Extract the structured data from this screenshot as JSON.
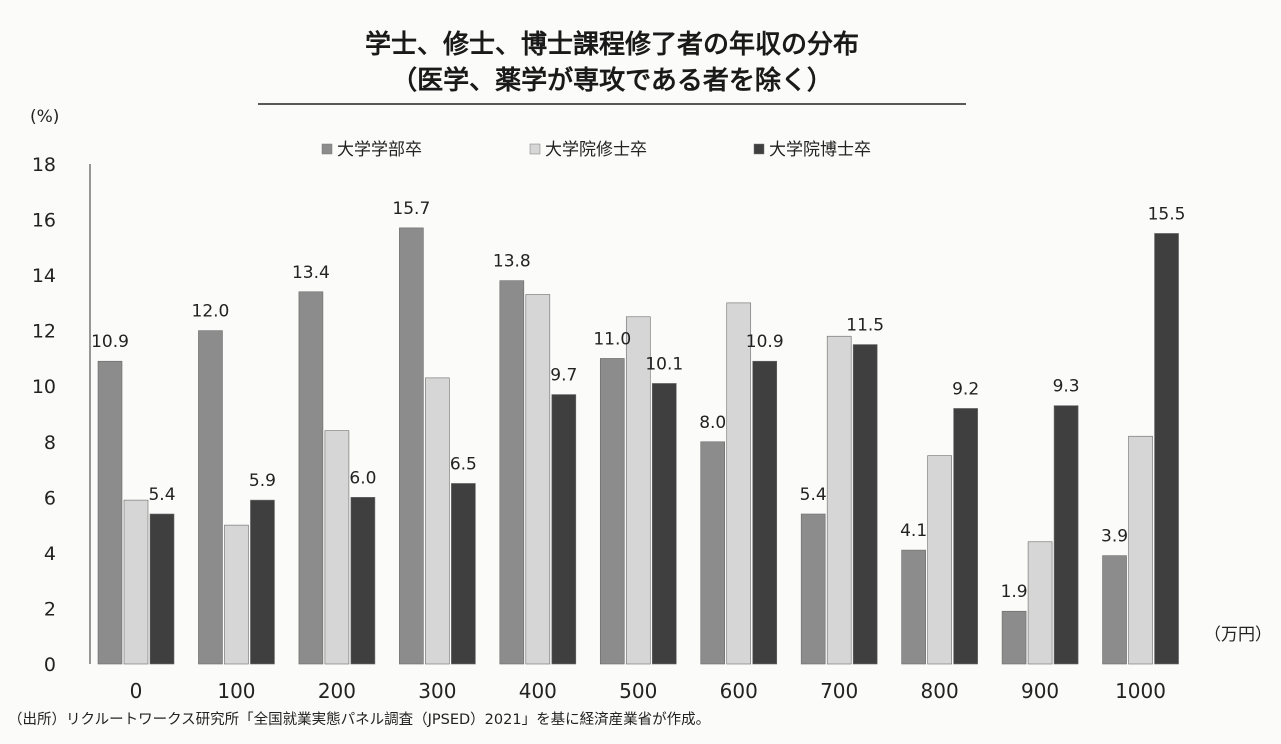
{
  "chart_data": {
    "type": "bar",
    "title_line1": "学士、修士、博士課程修了者の年収の分布",
    "title_line2": "（医学、薬学が専攻である者を除く）",
    "ylabel": "(%)",
    "xlabel": "（万円）",
    "categories": [
      "0",
      "100",
      "200",
      "300",
      "400",
      "500",
      "600",
      "700",
      "800",
      "900",
      "1000"
    ],
    "ylim": [
      0,
      18
    ],
    "yticks": [
      0,
      2,
      4,
      6,
      8,
      10,
      12,
      14,
      16,
      18
    ],
    "legend_position": "top-center",
    "grid": false,
    "series": [
      {
        "name": "大学学部卒",
        "color": "#8c8c8c",
        "values": [
          10.9,
          12.0,
          13.4,
          15.7,
          13.8,
          11.0,
          8.0,
          5.4,
          4.1,
          1.9,
          3.9
        ]
      },
      {
        "name": "大学院修士卒",
        "color": "#d6d6d6",
        "values": [
          5.9,
          5.0,
          8.4,
          10.3,
          13.3,
          12.5,
          13.0,
          11.8,
          7.5,
          4.4,
          8.2
        ]
      },
      {
        "name": "大学院博士卒",
        "color": "#3f3f3f",
        "values": [
          5.4,
          5.9,
          6.0,
          6.5,
          9.7,
          10.1,
          10.9,
          11.5,
          9.2,
          9.3,
          15.5
        ]
      }
    ],
    "data_labels": [
      {
        "category_index": 0,
        "series_index": 0,
        "text": "10.9"
      },
      {
        "category_index": 0,
        "series_index": 2,
        "text": "5.4"
      },
      {
        "category_index": 1,
        "series_index": 0,
        "text": "12.0"
      },
      {
        "category_index": 1,
        "series_index": 2,
        "text": "5.9"
      },
      {
        "category_index": 2,
        "series_index": 0,
        "text": "13.4"
      },
      {
        "category_index": 2,
        "series_index": 2,
        "text": "6.0"
      },
      {
        "category_index": 3,
        "series_index": 0,
        "text": "15.7"
      },
      {
        "category_index": 3,
        "series_index": 2,
        "text": "6.5"
      },
      {
        "category_index": 4,
        "series_index": 0,
        "text": "13.8"
      },
      {
        "category_index": 4,
        "series_index": 2,
        "text": "9.7"
      },
      {
        "category_index": 5,
        "series_index": 0,
        "text": "11.0"
      },
      {
        "category_index": 5,
        "series_index": 2,
        "text": "10.1"
      },
      {
        "category_index": 6,
        "series_index": 0,
        "text": "8.0"
      },
      {
        "category_index": 6,
        "series_index": 2,
        "text": "10.9"
      },
      {
        "category_index": 7,
        "series_index": 0,
        "text": "5.4"
      },
      {
        "category_index": 7,
        "series_index": 2,
        "text": "11.5"
      },
      {
        "category_index": 8,
        "series_index": 0,
        "text": "4.1"
      },
      {
        "category_index": 8,
        "series_index": 2,
        "text": "9.2"
      },
      {
        "category_index": 9,
        "series_index": 0,
        "text": "1.9"
      },
      {
        "category_index": 9,
        "series_index": 2,
        "text": "9.3"
      },
      {
        "category_index": 10,
        "series_index": 0,
        "text": "3.9"
      },
      {
        "category_index": 10,
        "series_index": 2,
        "text": "15.5"
      }
    ]
  },
  "source_note": "（出所）リクルートワークス研究所「全国就業実態パネル調査（JPSED）2021」を基に経済産業省が作成。"
}
